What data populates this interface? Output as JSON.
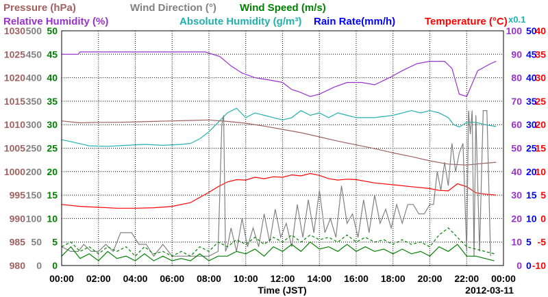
{
  "chart_data": {
    "type": "line",
    "title": "",
    "xlabel": "Time (JST)",
    "date": "2012-03-11",
    "x_ticks": [
      "00:00",
      "02:00",
      "04:00",
      "06:00",
      "08:00",
      "10:00",
      "12:00",
      "14:00",
      "16:00",
      "18:00",
      "20:00",
      "22:00",
      "00:00"
    ],
    "xlim_hours": [
      0,
      24
    ],
    "grid": true,
    "legend": [
      {
        "label": "Pressure (hPa)",
        "color": "#a06060",
        "row": 1
      },
      {
        "label": "Wind Direction (°)",
        "color": "#808080",
        "row": 1
      },
      {
        "label": "Wind Speed (m/s)",
        "color": "#008000",
        "row": 1
      },
      {
        "label": "Relative Humidity (%)",
        "color": "#9b30d0",
        "row": 2
      },
      {
        "label": "Absolute Humidity (g/m³)",
        "color": "#20b0b0",
        "row": 2
      },
      {
        "label": "Rain Rate(mm/h)",
        "color": "#0000ff",
        "row": 2
      },
      {
        "label": "Temperature (°C)",
        "color": "#ff0000",
        "row": 2
      }
    ],
    "scale_note": "x0.1",
    "axes": {
      "pressure": {
        "color": "#a06060",
        "side": "left",
        "range": [
          980,
          1030
        ],
        "ticks": [
          980,
          985,
          990,
          995,
          1000,
          1005,
          1010,
          1015,
          1020,
          1025,
          1030
        ]
      },
      "wind_direction": {
        "color": "#808080",
        "side": "left",
        "range": [
          0,
          500
        ],
        "ticks": [
          0,
          50,
          100,
          150,
          200,
          250,
          300,
          350,
          400,
          450,
          500
        ]
      },
      "wind_speed": {
        "color": "#008000",
        "side": "left",
        "range": [
          0,
          50
        ],
        "ticks": [
          0,
          5,
          10,
          15,
          20,
          25,
          30,
          35,
          40,
          45,
          50
        ]
      },
      "relative_humidity": {
        "color": "#9b30d0",
        "side": "right",
        "range": [
          0,
          100
        ],
        "ticks": [
          0,
          10,
          20,
          30,
          40,
          50,
          60,
          70,
          80,
          90,
          100
        ]
      },
      "absolute_humidity": {
        "color": "#20b0b0",
        "side": "right",
        "range": [
          0,
          50
        ],
        "ticks": [
          0,
          5,
          10,
          15,
          20,
          25,
          30,
          35,
          40,
          45,
          50
        ]
      },
      "rain_rate": {
        "color": "#0000ff",
        "side": "right",
        "range": [
          0,
          50
        ],
        "ticks": [
          0,
          5,
          10,
          15,
          20,
          25,
          30,
          35,
          40,
          45,
          50
        ]
      },
      "temperature": {
        "color": "#ff0000",
        "side": "right",
        "range": [
          -10,
          40
        ],
        "ticks": [
          -10,
          -5,
          0,
          5,
          10,
          15,
          20,
          25,
          30,
          35,
          40
        ]
      }
    },
    "series": [
      {
        "name": "Relative Humidity",
        "axis": "relative_humidity",
        "color": "#9b30d0",
        "x": [
          0,
          0.9,
          1.0,
          7.8,
          8.6,
          9.2,
          9.8,
          10.5,
          11.3,
          12.0,
          12.5,
          12.9,
          13.5,
          14.0,
          14.8,
          15.5,
          16.3,
          17.0,
          17.8,
          18.5,
          19.3,
          20.0,
          20.8,
          21.2,
          21.6,
          22.0,
          22.6,
          23.3,
          23.6
        ],
        "y": [
          90,
          90,
          91,
          91,
          89,
          85,
          82,
          80,
          79,
          78,
          75,
          74,
          72,
          73,
          76,
          78,
          78,
          77,
          80,
          83,
          86,
          87,
          87,
          84,
          73,
          72,
          83,
          86,
          87
        ]
      },
      {
        "name": "Absolute Humidity",
        "axis": "absolute_humidity",
        "color": "#20b0b0",
        "x": [
          0,
          0.5,
          1.5,
          2.5,
          3.5,
          4.5,
          5.5,
          6.5,
          7.0,
          7.5,
          8.0,
          8.5,
          9.0,
          9.5,
          10.0,
          10.5,
          11.0,
          11.5,
          12.0,
          12.5,
          13.0,
          13.5,
          14.0,
          14.5,
          15.0,
          15.5,
          16.0,
          17.0,
          18.0,
          19.0,
          19.5,
          20.0,
          20.5,
          21.0,
          21.3,
          21.6,
          22.0,
          22.5,
          23.0,
          23.6
        ],
        "y": [
          26.8,
          26.4,
          25.5,
          25.4,
          25.6,
          25.8,
          25.6,
          25.8,
          26.0,
          27.0,
          28.5,
          30.5,
          32.5,
          33.5,
          31.5,
          32.5,
          32.0,
          31.5,
          31.0,
          31.5,
          33.0,
          32.0,
          32.5,
          31.5,
          32.5,
          32.0,
          31.5,
          31.5,
          32.0,
          33.0,
          32.5,
          33.0,
          32.5,
          31.5,
          30.0,
          29.5,
          30.5,
          30.5,
          30.0,
          29.6
        ]
      },
      {
        "name": "Pressure",
        "axis": "pressure",
        "color": "#a06060",
        "x": [
          0,
          1,
          2,
          3,
          4,
          5,
          6,
          7,
          8,
          9,
          10,
          11,
          12,
          13,
          14,
          15,
          16,
          17,
          18,
          19,
          20,
          21,
          22,
          23,
          23.6
        ],
        "y": [
          1010.8,
          1010.4,
          1010.5,
          1010.5,
          1010.6,
          1010.7,
          1010.8,
          1010.9,
          1011.0,
          1010.7,
          1010.3,
          1009.7,
          1009.0,
          1008.3,
          1007.4,
          1006.5,
          1005.7,
          1004.9,
          1004.0,
          1003.2,
          1002.3,
          1001.6,
          1001.4,
          1001.8,
          1002.0
        ]
      },
      {
        "name": "Temperature",
        "axis": "temperature",
        "color": "#ff0000",
        "x": [
          0,
          1,
          2,
          3,
          4,
          5,
          6,
          7,
          7.5,
          8.0,
          8.5,
          9.0,
          9.5,
          10.0,
          10.5,
          11.0,
          11.5,
          12.0,
          12.5,
          13.0,
          13.5,
          14.0,
          14.5,
          15.0,
          15.5,
          16.0,
          17.0,
          18.0,
          19.0,
          20.0,
          20.5,
          21.0,
          21.5,
          22.0,
          22.5,
          23.0,
          23.6
        ],
        "y": [
          3.0,
          2.6,
          2.4,
          2.2,
          2.2,
          2.3,
          2.6,
          3.4,
          4.5,
          5.6,
          6.8,
          7.8,
          8.3,
          8.2,
          8.8,
          8.5,
          8.9,
          8.8,
          9.3,
          9.1,
          9.6,
          9.2,
          8.5,
          8.2,
          8.4,
          8.3,
          7.6,
          7.2,
          6.8,
          6.4,
          6.0,
          5.9,
          7.4,
          6.8,
          5.5,
          5.2,
          5.0
        ]
      },
      {
        "name": "Wind Direction",
        "axis": "wind_direction",
        "color": "#808080",
        "x": [
          0,
          0.5,
          0.9,
          1.2,
          1.6,
          2.0,
          2.4,
          2.8,
          3.2,
          3.5,
          3.8,
          4.2,
          4.6,
          5.0,
          5.5,
          6.0,
          6.5,
          7.0,
          7.5,
          8.0,
          8.5,
          8.7,
          8.8,
          8.9,
          9.0,
          9.2,
          9.5,
          9.8,
          10.1,
          10.4,
          10.7,
          11.0,
          11.3,
          11.6,
          11.9,
          12.2,
          12.5,
          12.8,
          13.1,
          13.4,
          13.7,
          14.0,
          14.3,
          14.6,
          14.9,
          15.2,
          15.5,
          15.8,
          16.1,
          16.4,
          16.7,
          17.0,
          17.3,
          17.6,
          17.9,
          18.2,
          18.5,
          18.8,
          19.1,
          19.4,
          19.7,
          20.0,
          20.2,
          20.4,
          20.6,
          20.8,
          21.0,
          21.2,
          21.4,
          21.6,
          21.8,
          22.0,
          22.1,
          22.2,
          22.3,
          22.4,
          22.5,
          22.7,
          22.9,
          23.1,
          23.3
        ],
        "y": [
          40,
          30,
          30,
          45,
          30,
          30,
          45,
          30,
          70,
          70,
          70,
          45,
          45,
          20,
          45,
          20,
          20,
          20,
          20,
          20,
          30,
          300,
          320,
          30,
          40,
          80,
          30,
          100,
          40,
          80,
          40,
          110,
          50,
          120,
          60,
          90,
          40,
          130,
          60,
          140,
          70,
          160,
          70,
          100,
          60,
          170,
          90,
          110,
          60,
          140,
          70,
          150,
          90,
          120,
          80,
          130,
          90,
          130,
          130,
          110,
          110,
          130,
          130,
          200,
          160,
          220,
          170,
          260,
          200,
          240,
          260,
          30,
          330,
          280,
          330,
          20,
          320,
          30,
          330,
          330,
          20
        ]
      },
      {
        "name": "Wind Speed",
        "axis": "wind_speed",
        "color": "#008000",
        "x": [
          0,
          0.5,
          1.0,
          1.5,
          2.0,
          2.5,
          3.0,
          3.5,
          4.0,
          4.5,
          5.0,
          5.5,
          6.0,
          6.5,
          7.0,
          7.5,
          8.0,
          8.5,
          9.0,
          9.5,
          10.0,
          10.5,
          11.0,
          11.5,
          12.0,
          12.5,
          13.0,
          13.5,
          14.0,
          14.5,
          15.0,
          15.5,
          16.0,
          16.5,
          17.0,
          17.5,
          18.0,
          18.5,
          19.0,
          19.5,
          20.0,
          20.5,
          21.0,
          21.5,
          22.0,
          22.5,
          23.0,
          23.5
        ],
        "y": [
          2,
          4,
          1.5,
          2.5,
          1,
          3,
          1.5,
          2,
          1,
          2.5,
          1,
          2,
          1,
          1.5,
          1,
          2.5,
          1,
          2,
          2,
          3,
          2.5,
          3.5,
          2,
          4,
          3,
          4.5,
          3,
          5,
          3.5,
          4,
          3,
          4.5,
          3,
          4,
          3,
          3.5,
          2.5,
          3.5,
          2.5,
          3,
          2,
          4,
          3,
          4.5,
          2,
          2,
          1.5,
          1
        ]
      },
      {
        "name": "Wind Speed (gust)",
        "axis": "wind_speed",
        "color": "#008000",
        "dashed": true,
        "x": [
          0,
          0.5,
          1.0,
          1.5,
          2.0,
          2.5,
          3.0,
          3.5,
          4.0,
          4.5,
          5.0,
          5.5,
          6.0,
          6.5,
          7.0,
          7.5,
          8.0,
          8.5,
          9.0,
          9.5,
          10.0,
          10.5,
          11.0,
          11.5,
          12.0,
          12.5,
          13.0,
          13.5,
          14.0,
          14.5,
          15.0,
          15.5,
          16.0,
          16.5,
          17.0,
          17.5,
          18.0,
          18.5,
          19.0,
          19.5,
          20.0,
          20.5,
          21.0,
          21.5,
          22.0,
          22.5,
          23.0,
          23.5
        ],
        "y": [
          4,
          5,
          3,
          4,
          2.5,
          4,
          3,
          4,
          2,
          4,
          2.5,
          3,
          2,
          3,
          2,
          4,
          3,
          5,
          4,
          5.5,
          4.5,
          6,
          4.5,
          6,
          5,
          6.5,
          5,
          6.5,
          5.5,
          6,
          5,
          6.5,
          5,
          6,
          5,
          5.5,
          4.5,
          5.5,
          4.5,
          5,
          4,
          6.5,
          8,
          6,
          4,
          3.5,
          3,
          2.5
        ]
      }
    ]
  }
}
